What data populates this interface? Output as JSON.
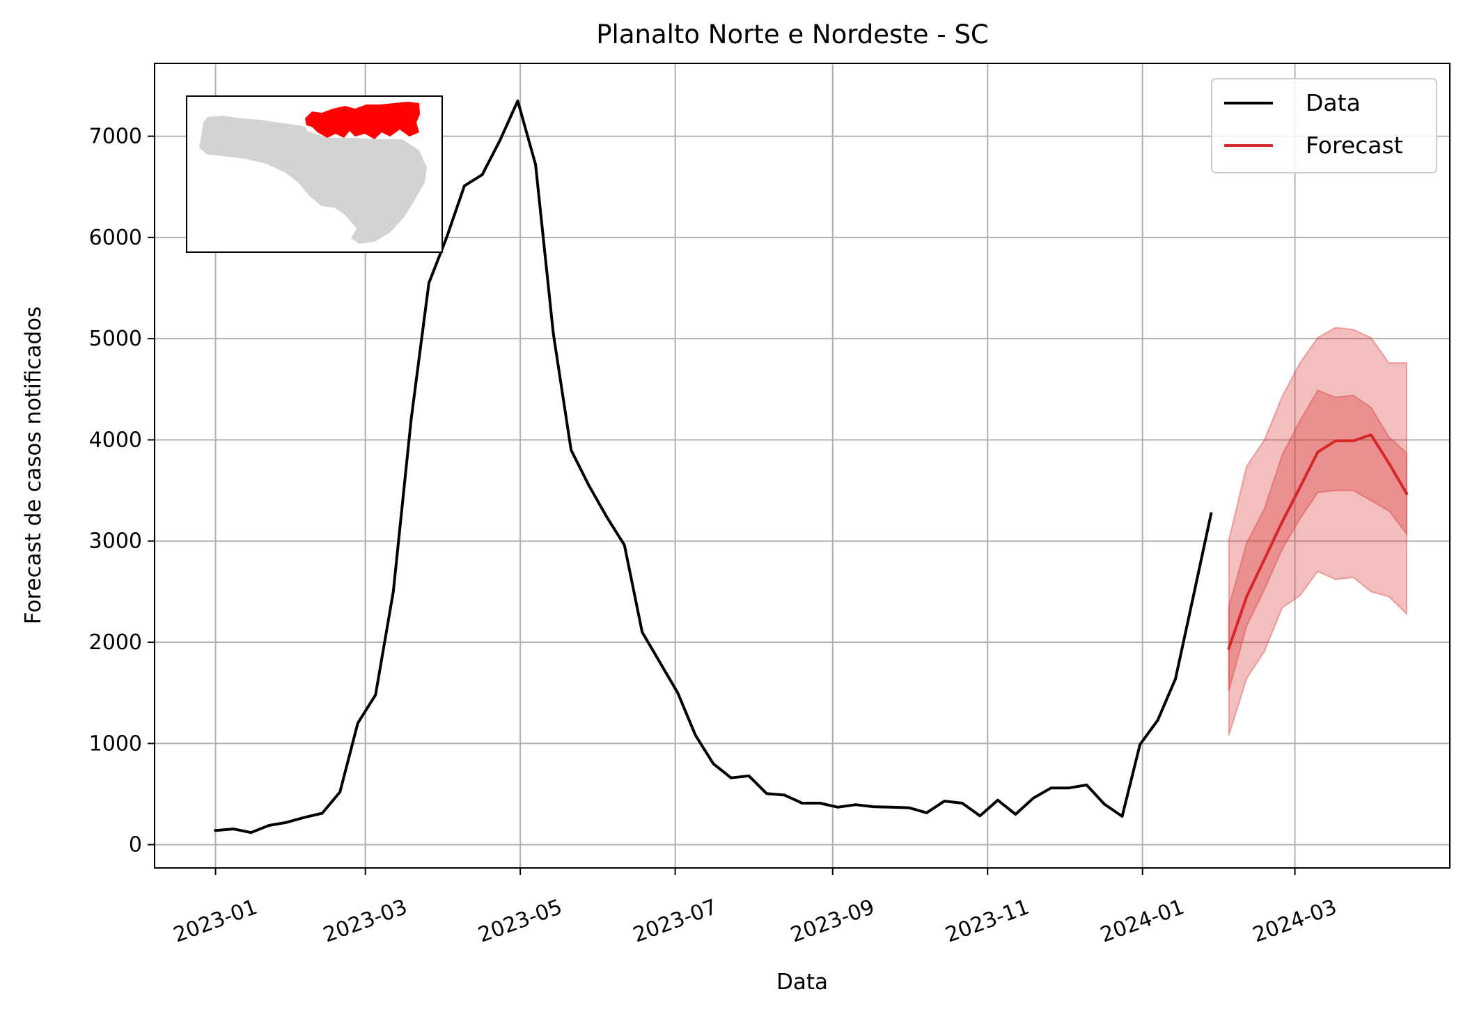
{
  "chart_data": {
    "type": "line",
    "title": "Planalto Norte e Nordeste - SC",
    "xlabel": "Data",
    "ylabel": "Forecast de casos notificados",
    "x_axis": "date",
    "xlim": [
      "2022-12-08",
      "2024-05-01"
    ],
    "ylim": [
      -230,
      7720
    ],
    "xticks": [
      "2023-01",
      "2023-03",
      "2023-05",
      "2023-07",
      "2023-09",
      "2023-11",
      "2024-01",
      "2024-03"
    ],
    "yticks": [
      0,
      1000,
      2000,
      3000,
      4000,
      5000,
      6000,
      7000
    ],
    "grid": true,
    "legend": {
      "position": "top-right",
      "entries": [
        {
          "label": "Data",
          "color": "#000000"
        },
        {
          "label": "Forecast",
          "color": "#d62728"
        }
      ]
    },
    "series": [
      {
        "name": "Data",
        "color": "#000000",
        "points": [
          [
            "2023-01-01",
            140
          ],
          [
            "2023-01-08",
            155
          ],
          [
            "2023-01-15",
            120
          ],
          [
            "2023-01-22",
            190
          ],
          [
            "2023-01-29",
            220
          ],
          [
            "2023-02-05",
            270
          ],
          [
            "2023-02-12",
            310
          ],
          [
            "2023-02-19",
            520
          ],
          [
            "2023-02-26",
            1200
          ],
          [
            "2023-03-05",
            1480
          ],
          [
            "2023-03-12",
            2500
          ],
          [
            "2023-03-19",
            4200
          ],
          [
            "2023-03-26",
            5550
          ],
          [
            "2023-04-02",
            6000
          ],
          [
            "2023-04-09",
            6510
          ],
          [
            "2023-04-16",
            6620
          ],
          [
            "2023-04-23",
            6960
          ],
          [
            "2023-04-30",
            7350
          ],
          [
            "2023-05-07",
            6720
          ],
          [
            "2023-05-14",
            5050
          ],
          [
            "2023-05-21",
            3900
          ],
          [
            "2023-05-28",
            3550
          ],
          [
            "2023-06-04",
            3240
          ],
          [
            "2023-06-11",
            2960
          ],
          [
            "2023-06-18",
            2100
          ],
          [
            "2023-06-25",
            1800
          ],
          [
            "2023-07-02",
            1500
          ],
          [
            "2023-07-09",
            1080
          ],
          [
            "2023-07-16",
            800
          ],
          [
            "2023-07-23",
            660
          ],
          [
            "2023-07-30",
            680
          ],
          [
            "2023-08-06",
            505
          ],
          [
            "2023-08-13",
            490
          ],
          [
            "2023-08-20",
            410
          ],
          [
            "2023-08-27",
            410
          ],
          [
            "2023-09-03",
            370
          ],
          [
            "2023-09-10",
            395
          ],
          [
            "2023-09-17",
            375
          ],
          [
            "2023-09-24",
            370
          ],
          [
            "2023-10-01",
            365
          ],
          [
            "2023-10-08",
            315
          ],
          [
            "2023-10-15",
            430
          ],
          [
            "2023-10-22",
            410
          ],
          [
            "2023-10-29",
            285
          ],
          [
            "2023-11-05",
            440
          ],
          [
            "2023-11-12",
            300
          ],
          [
            "2023-11-19",
            460
          ],
          [
            "2023-11-26",
            560
          ],
          [
            "2023-12-03",
            560
          ],
          [
            "2023-12-10",
            590
          ],
          [
            "2023-12-17",
            400
          ],
          [
            "2023-12-24",
            280
          ],
          [
            "2023-12-31",
            990
          ],
          [
            "2024-01-07",
            1230
          ],
          [
            "2024-01-14",
            1640
          ],
          [
            "2024-01-21",
            2450
          ],
          [
            "2024-01-28",
            3270
          ]
        ]
      },
      {
        "name": "Forecast",
        "color": "#d62728",
        "points": [
          [
            "2024-02-04",
            1940
          ],
          [
            "2024-02-11",
            2450
          ],
          [
            "2024-02-18",
            2820
          ],
          [
            "2024-02-25",
            3190
          ],
          [
            "2024-03-03",
            3530
          ],
          [
            "2024-03-10",
            3880
          ],
          [
            "2024-03-17",
            3990
          ],
          [
            "2024-03-24",
            3990
          ],
          [
            "2024-03-31",
            4050
          ],
          [
            "2024-04-07",
            3770
          ],
          [
            "2024-04-14",
            3470
          ]
        ],
        "bands": [
          {
            "lower": [
              1080,
              1640,
              1910,
              2340,
              2460,
              2700,
              2620,
              2640,
              2500,
              2450,
              2280
            ],
            "upper": [
              3010,
              3740,
              4000,
              4430,
              4760,
              5010,
              5110,
              5090,
              5010,
              4760,
              4760
            ],
            "opacity": 0.3
          },
          {
            "lower": [
              1520,
              2160,
              2520,
              2920,
              3220,
              3480,
              3500,
              3500,
              3400,
              3300,
              3070
            ],
            "upper": [
              2350,
              2980,
              3320,
              3850,
              4190,
              4490,
              4420,
              4440,
              4320,
              4030,
              3870
            ],
            "opacity": 0.3
          }
        ]
      }
    ]
  },
  "inset_map": {
    "region_color": "#ff0000",
    "state_color": "#d3d3d3"
  }
}
